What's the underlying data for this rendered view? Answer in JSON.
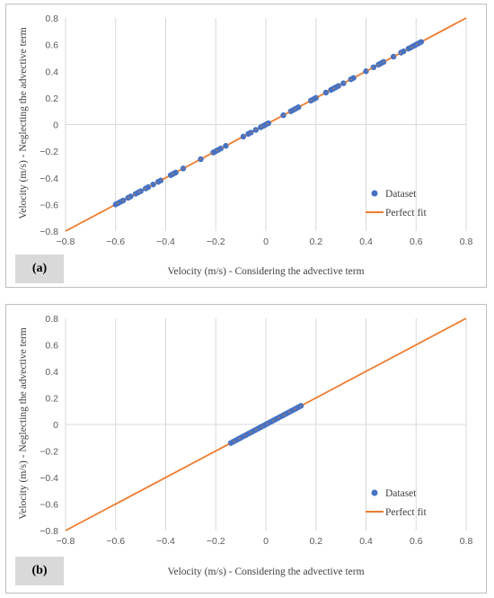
{
  "chart_data": [
    {
      "type": "scatter",
      "panel_label": "(a)",
      "xlabel": "Velocity (m/s) - Considering the advective term",
      "ylabel": "Velocity (m/s) - Neglecting the advective term",
      "xlim": [
        -0.8,
        0.8
      ],
      "ylim": [
        -0.8,
        0.8
      ],
      "xticks": [
        "−0.8",
        "−0.6",
        "−0.4",
        "−0.2",
        "0",
        "0.2",
        "0.4",
        "0.6",
        "0.8"
      ],
      "yticks": [
        "0.8",
        "0.6",
        "0.4",
        "0.2",
        "0",
        "−0.2",
        "−0.4",
        "−0.6",
        "−0.8"
      ],
      "grid": "vertical",
      "legend_position": "bottom-right",
      "series": [
        {
          "name": "Dataset",
          "kind": "points",
          "color": "#4472c4",
          "x": [
            -0.6,
            -0.59,
            -0.58,
            -0.57,
            -0.55,
            -0.54,
            -0.52,
            -0.51,
            -0.5,
            -0.48,
            -0.47,
            -0.45,
            -0.43,
            -0.42,
            -0.38,
            -0.37,
            -0.36,
            -0.33,
            -0.26,
            -0.21,
            -0.2,
            -0.19,
            -0.18,
            -0.16,
            -0.09,
            -0.07,
            -0.06,
            -0.04,
            -0.02,
            -0.01,
            0.0,
            0.01,
            0.07,
            0.1,
            0.11,
            0.12,
            0.13,
            0.18,
            0.19,
            0.2,
            0.24,
            0.26,
            0.27,
            0.28,
            0.29,
            0.31,
            0.34,
            0.35,
            0.4,
            0.43,
            0.45,
            0.46,
            0.47,
            0.51,
            0.54,
            0.55,
            0.57,
            0.58,
            0.59,
            0.6,
            0.61,
            0.62
          ],
          "y": [
            -0.6,
            -0.59,
            -0.58,
            -0.57,
            -0.55,
            -0.54,
            -0.52,
            -0.51,
            -0.5,
            -0.48,
            -0.47,
            -0.45,
            -0.43,
            -0.42,
            -0.38,
            -0.37,
            -0.36,
            -0.33,
            -0.26,
            -0.21,
            -0.2,
            -0.19,
            -0.18,
            -0.16,
            -0.09,
            -0.07,
            -0.06,
            -0.04,
            -0.02,
            -0.01,
            0.0,
            0.01,
            0.07,
            0.1,
            0.11,
            0.12,
            0.13,
            0.18,
            0.19,
            0.2,
            0.24,
            0.26,
            0.27,
            0.28,
            0.29,
            0.31,
            0.34,
            0.35,
            0.4,
            0.43,
            0.45,
            0.46,
            0.47,
            0.51,
            0.54,
            0.55,
            0.57,
            0.58,
            0.59,
            0.6,
            0.61,
            0.62
          ]
        },
        {
          "name": "Perfect fit",
          "kind": "line",
          "color": "#ed7d31",
          "x": [
            -0.8,
            0.8
          ],
          "y": [
            -0.8,
            0.8
          ]
        }
      ]
    },
    {
      "type": "scatter",
      "panel_label": "(b)",
      "xlabel": "Velocity (m/s) - Considering the advective term",
      "ylabel": "Velocity (m/s) - Neglecting the advective term",
      "xlim": [
        -0.8,
        0.8
      ],
      "ylim": [
        -0.8,
        0.8
      ],
      "xticks": [
        "−0.8",
        "−0.6",
        "−0.4",
        "−0.2",
        "0",
        "0.2",
        "0.4",
        "0.6",
        "0.8"
      ],
      "yticks": [
        "0.8",
        "0.6",
        "0.4",
        "0.2",
        "0",
        "−0.2",
        "−0.4",
        "−0.6",
        "−0.8"
      ],
      "grid": "vertical",
      "legend_position": "bottom-right",
      "series": [
        {
          "name": "Dataset",
          "kind": "points",
          "color": "#4472c4",
          "x": [
            -0.14,
            -0.13,
            -0.12,
            -0.11,
            -0.1,
            -0.09,
            -0.08,
            -0.07,
            -0.06,
            -0.05,
            -0.04,
            -0.03,
            -0.02,
            -0.01,
            0.0,
            0.01,
            0.02,
            0.03,
            0.04,
            0.05,
            0.06,
            0.07,
            0.08,
            0.09,
            0.1,
            0.11,
            0.12,
            0.13,
            0.14
          ],
          "y": [
            -0.14,
            -0.13,
            -0.12,
            -0.11,
            -0.1,
            -0.09,
            -0.08,
            -0.07,
            -0.06,
            -0.05,
            -0.04,
            -0.03,
            -0.02,
            -0.01,
            0.0,
            0.01,
            0.02,
            0.03,
            0.04,
            0.05,
            0.06,
            0.07,
            0.08,
            0.09,
            0.1,
            0.11,
            0.12,
            0.13,
            0.14
          ]
        },
        {
          "name": "Perfect fit",
          "kind": "line",
          "color": "#ed7d31",
          "x": [
            -0.8,
            0.8
          ],
          "y": [
            -0.8,
            0.8
          ]
        }
      ]
    }
  ]
}
